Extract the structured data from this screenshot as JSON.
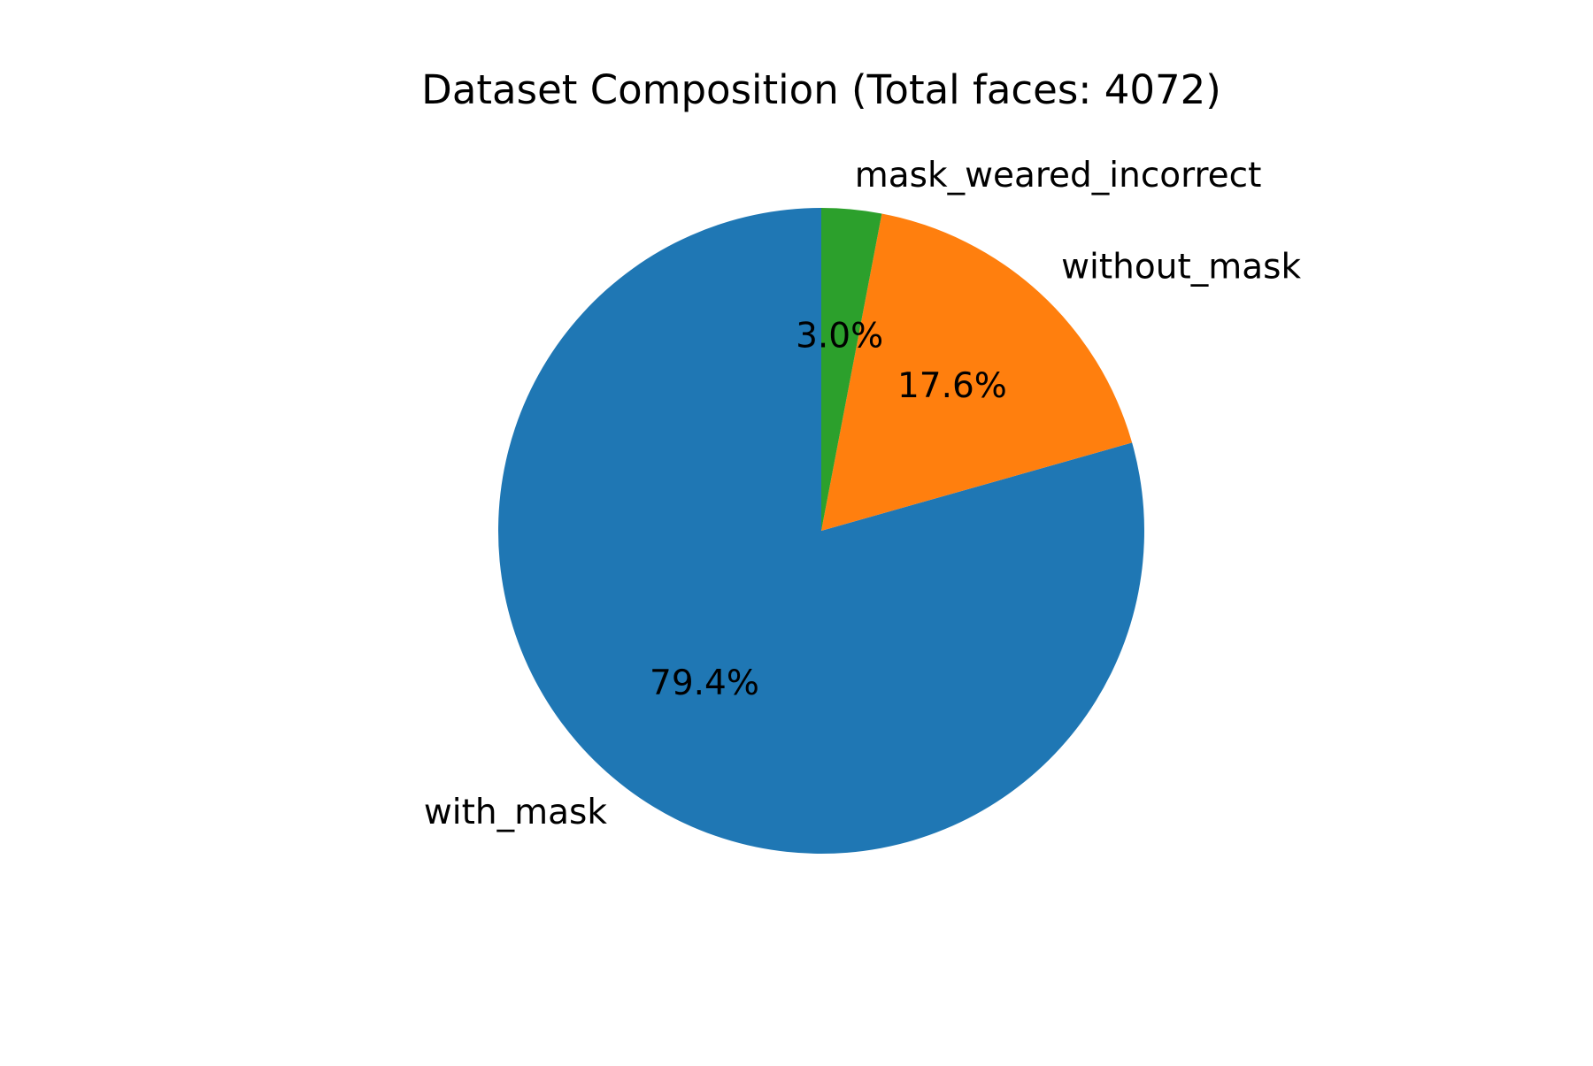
{
  "chart_data": {
    "type": "pie",
    "title": "Dataset Composition (Total faces: 4072)",
    "slices": [
      {
        "label": "with_mask",
        "value": 79.4,
        "pct_label": "79.4%",
        "color": "#1f77b4"
      },
      {
        "label": "without_mask",
        "value": 17.6,
        "pct_label": "17.6%",
        "color": "#ff7f0e"
      },
      {
        "label": "mask_weared_incorrect",
        "value": 3.0,
        "pct_label": "3.0%",
        "color": "#2ca02c"
      }
    ],
    "start_angle_deg": 90,
    "direction": "counterclockwise"
  }
}
